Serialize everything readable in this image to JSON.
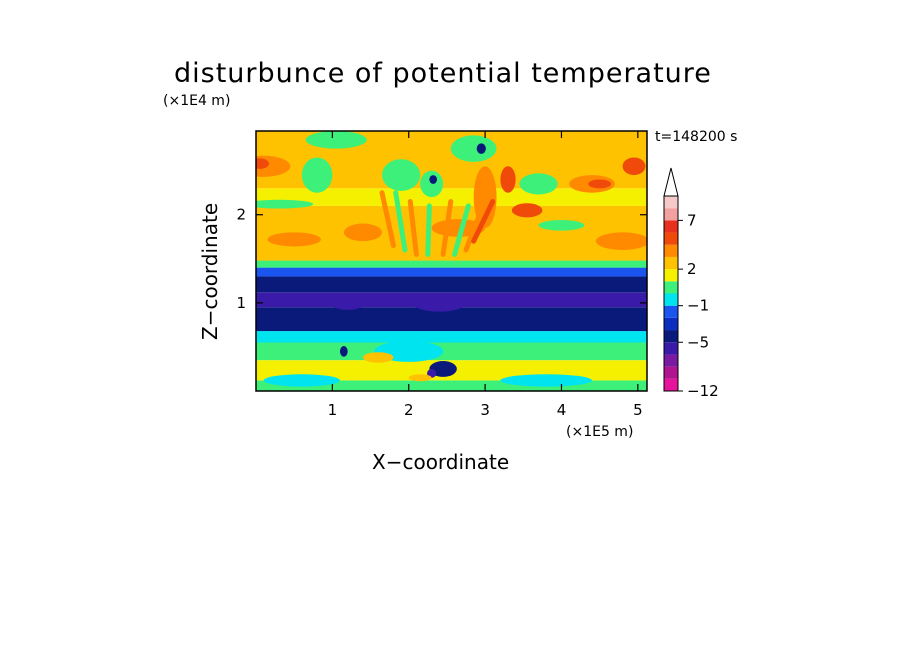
{
  "chart_data": {
    "type": "heatmap",
    "title": "disturbunce of potential temperature",
    "xlabel": "X−coordinate",
    "ylabel": "Z−coordinate",
    "x_unit": "(×1E5 m)",
    "y_unit": "(×1E4 m)",
    "time_label": "t=148200 s",
    "xlim": [
      0,
      5.12
    ],
    "ylim": [
      0,
      2.95
    ],
    "x_ticks": [
      1,
      2,
      3,
      4,
      5
    ],
    "y_ticks": [
      1,
      2
    ],
    "colorbar": {
      "extend_max": true,
      "levels": [
        -12,
        -10,
        -8,
        -7,
        -5,
        -4,
        -2,
        -1,
        0,
        1,
        2,
        3,
        5,
        6,
        7,
        9
      ],
      "colors": [
        "#e8139b",
        "#b0148e",
        "#7a1aa0",
        "#3a1aa8",
        "#0a1a7a",
        "#0b2ec0",
        "#1a55f0",
        "#00e4ef",
        "#3df07a",
        "#f5f000",
        "#ffc200",
        "#ff8a00",
        "#f04a0a",
        "#e8301e",
        "#f2a0a0",
        "#f6c8c8"
      ],
      "tick_labels": [
        {
          "value": -12,
          "label": "−12"
        },
        {
          "value": -5,
          "label": "−5"
        },
        {
          "value": -1,
          "label": "−1"
        },
        {
          "value": 2,
          "label": "2"
        },
        {
          "value": 7,
          "label": "7"
        }
      ]
    },
    "field_bands": [
      {
        "z_from": 0.0,
        "z_to": 0.12,
        "value": 0.5
      },
      {
        "z_from": 0.12,
        "z_to": 0.35,
        "value": 1.5
      },
      {
        "z_from": 0.35,
        "z_to": 0.55,
        "value": 0.5
      },
      {
        "z_from": 0.55,
        "z_to": 0.68,
        "value": -0.5
      },
      {
        "z_from": 0.68,
        "z_to": 0.95,
        "value": -4.5
      },
      {
        "z_from": 0.95,
        "z_to": 1.12,
        "value": -6
      },
      {
        "z_from": 1.12,
        "z_to": 1.3,
        "value": -4.5
      },
      {
        "z_from": 1.3,
        "z_to": 1.4,
        "value": -1.5
      },
      {
        "z_from": 1.4,
        "z_to": 1.48,
        "value": 0.5
      },
      {
        "z_from": 1.48,
        "z_to": 2.1,
        "value": 2.5
      },
      {
        "z_from": 2.1,
        "z_to": 2.3,
        "value": 1.5
      },
      {
        "z_from": 2.3,
        "z_to": 2.95,
        "value": 2.5
      }
    ],
    "field_blobs": [
      {
        "x": 0.1,
        "z": 2.55,
        "rx": 0.35,
        "rz": 0.12,
        "value": 3.5
      },
      {
        "x": 0.05,
        "z": 2.58,
        "rx": 0.12,
        "rz": 0.06,
        "value": 5.5
      },
      {
        "x": 0.3,
        "z": 2.12,
        "rx": 0.45,
        "rz": 0.05,
        "value": 0.5
      },
      {
        "x": 0.5,
        "z": 1.72,
        "rx": 0.35,
        "rz": 0.08,
        "value": 3.5
      },
      {
        "x": 0.8,
        "z": 2.45,
        "rx": 0.2,
        "rz": 0.2,
        "value": 0.5
      },
      {
        "x": 1.05,
        "z": 2.85,
        "rx": 0.4,
        "rz": 0.1,
        "value": 0.5
      },
      {
        "x": 1.9,
        "z": 2.45,
        "rx": 0.25,
        "rz": 0.18,
        "value": 0.5
      },
      {
        "x": 2.3,
        "z": 2.35,
        "rx": 0.15,
        "rz": 0.15,
        "value": 0.5
      },
      {
        "x": 2.32,
        "z": 2.4,
        "rx": 0.05,
        "rz": 0.05,
        "value": -4.5
      },
      {
        "x": 2.85,
        "z": 2.75,
        "rx": 0.3,
        "rz": 0.15,
        "value": 0.5
      },
      {
        "x": 2.95,
        "z": 2.75,
        "rx": 0.06,
        "rz": 0.06,
        "value": -4.5
      },
      {
        "x": 3.0,
        "z": 2.2,
        "rx": 0.15,
        "rz": 0.35,
        "value": 3.5
      },
      {
        "x": 3.3,
        "z": 2.4,
        "rx": 0.1,
        "rz": 0.15,
        "value": 5.5
      },
      {
        "x": 3.55,
        "z": 2.05,
        "rx": 0.2,
        "rz": 0.08,
        "value": 5.5
      },
      {
        "x": 3.7,
        "z": 2.35,
        "rx": 0.25,
        "rz": 0.12,
        "value": 0.5
      },
      {
        "x": 4.0,
        "z": 1.88,
        "rx": 0.3,
        "rz": 0.06,
        "value": 0.5
      },
      {
        "x": 4.4,
        "z": 2.35,
        "rx": 0.3,
        "rz": 0.1,
        "value": 3.5
      },
      {
        "x": 4.5,
        "z": 2.35,
        "rx": 0.15,
        "rz": 0.05,
        "value": 5.5
      },
      {
        "x": 4.95,
        "z": 2.55,
        "rx": 0.15,
        "rz": 0.1,
        "value": 5.5
      },
      {
        "x": 4.8,
        "z": 1.7,
        "rx": 0.35,
        "rz": 0.1,
        "value": 3.5
      },
      {
        "x": 2.65,
        "z": 1.85,
        "rx": 0.35,
        "rz": 0.1,
        "value": 3.5
      },
      {
        "x": 1.4,
        "z": 1.8,
        "rx": 0.25,
        "rz": 0.1,
        "value": 3.5
      },
      {
        "x": 2.4,
        "z": 1.0,
        "rx": 0.35,
        "rz": 0.1,
        "value": -7
      },
      {
        "x": 1.2,
        "z": 0.98,
        "rx": 0.2,
        "rz": 0.06,
        "value": -7
      },
      {
        "x": 3.9,
        "z": 1.02,
        "rx": 0.4,
        "rz": 0.05,
        "value": -7
      },
      {
        "x": 2.45,
        "z": 0.25,
        "rx": 0.18,
        "rz": 0.09,
        "value": -4.5
      },
      {
        "x": 2.3,
        "z": 0.2,
        "rx": 0.06,
        "rz": 0.05,
        "value": -7
      },
      {
        "x": 2.0,
        "z": 0.45,
        "rx": 0.45,
        "rz": 0.12,
        "value": -0.5
      },
      {
        "x": 1.6,
        "z": 0.38,
        "rx": 0.2,
        "rz": 0.06,
        "value": 2.5
      },
      {
        "x": 2.15,
        "z": 0.15,
        "rx": 0.15,
        "rz": 0.04,
        "value": 2.5
      },
      {
        "x": 1.15,
        "z": 0.45,
        "rx": 0.05,
        "rz": 0.06,
        "value": -4.5
      },
      {
        "x": 0.6,
        "z": 0.12,
        "rx": 0.5,
        "rz": 0.07,
        "value": -0.5
      },
      {
        "x": 3.8,
        "z": 0.12,
        "rx": 0.6,
        "rz": 0.07,
        "value": -0.5
      }
    ],
    "field_streaks": [
      {
        "x": 1.95,
        "z": 1.6,
        "dx": -0.12,
        "dz": 0.65,
        "value": 0.5
      },
      {
        "x": 2.1,
        "z": 1.55,
        "dx": -0.08,
        "dz": 0.6,
        "value": 3.5
      },
      {
        "x": 2.25,
        "z": 1.55,
        "dx": 0.02,
        "dz": 0.55,
        "value": 0.5
      },
      {
        "x": 2.45,
        "z": 1.55,
        "dx": 0.1,
        "dz": 0.6,
        "value": 3.5
      },
      {
        "x": 2.6,
        "z": 1.55,
        "dx": 0.18,
        "dz": 0.55,
        "value": 0.5
      },
      {
        "x": 2.75,
        "z": 1.6,
        "dx": 0.22,
        "dz": 0.5,
        "value": 3.5
      },
      {
        "x": 2.85,
        "z": 1.7,
        "dx": 0.25,
        "dz": 0.45,
        "value": 5.5
      },
      {
        "x": 1.8,
        "z": 1.65,
        "dx": -0.15,
        "dz": 0.6,
        "value": 3.5
      }
    ]
  }
}
